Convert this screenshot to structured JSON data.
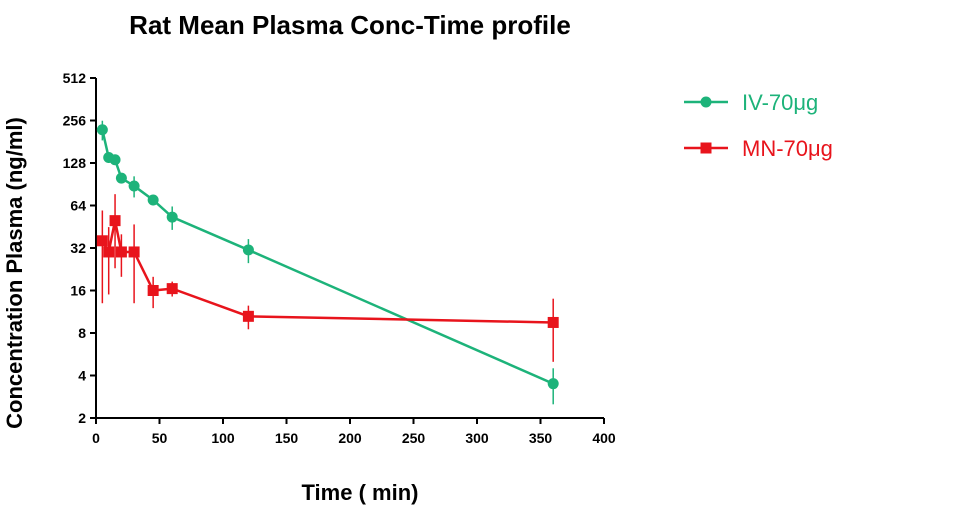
{
  "chart_data": {
    "type": "line",
    "title": "Rat Mean Plasma Conc-Time profile",
    "xlabel": "Time ( min)",
    "ylabel": "Concentration Plasma (ng/ml)",
    "xlim": [
      0,
      400
    ],
    "ylim": [
      2,
      512
    ],
    "y_scale": "log2",
    "x_ticks": [
      0,
      50,
      100,
      150,
      200,
      250,
      300,
      350,
      400
    ],
    "y_ticks": [
      2,
      4,
      8,
      16,
      32,
      64,
      128,
      256,
      512
    ],
    "grid": false,
    "legend_position": "top-right",
    "series": [
      {
        "name": "IV-70μg",
        "color": "#1db37a",
        "marker": "circle",
        "x": [
          5,
          10,
          15,
          20,
          30,
          45,
          60,
          120,
          360
        ],
        "y": [
          220,
          140,
          135,
          100,
          88,
          70,
          53,
          31,
          3.5
        ],
        "err": [
          35,
          12,
          10,
          8,
          15,
          6,
          10,
          6,
          1.0
        ]
      },
      {
        "name": "MN-70μg",
        "color": "#e8141c",
        "marker": "square",
        "x": [
          5,
          10,
          15,
          20,
          30,
          45,
          60,
          120,
          360
        ],
        "y": [
          36,
          30,
          50,
          30,
          30,
          16,
          16.5,
          10.5,
          9.5
        ],
        "err": [
          23,
          15,
          27,
          10,
          17,
          4,
          2,
          2,
          4.5
        ]
      }
    ]
  }
}
